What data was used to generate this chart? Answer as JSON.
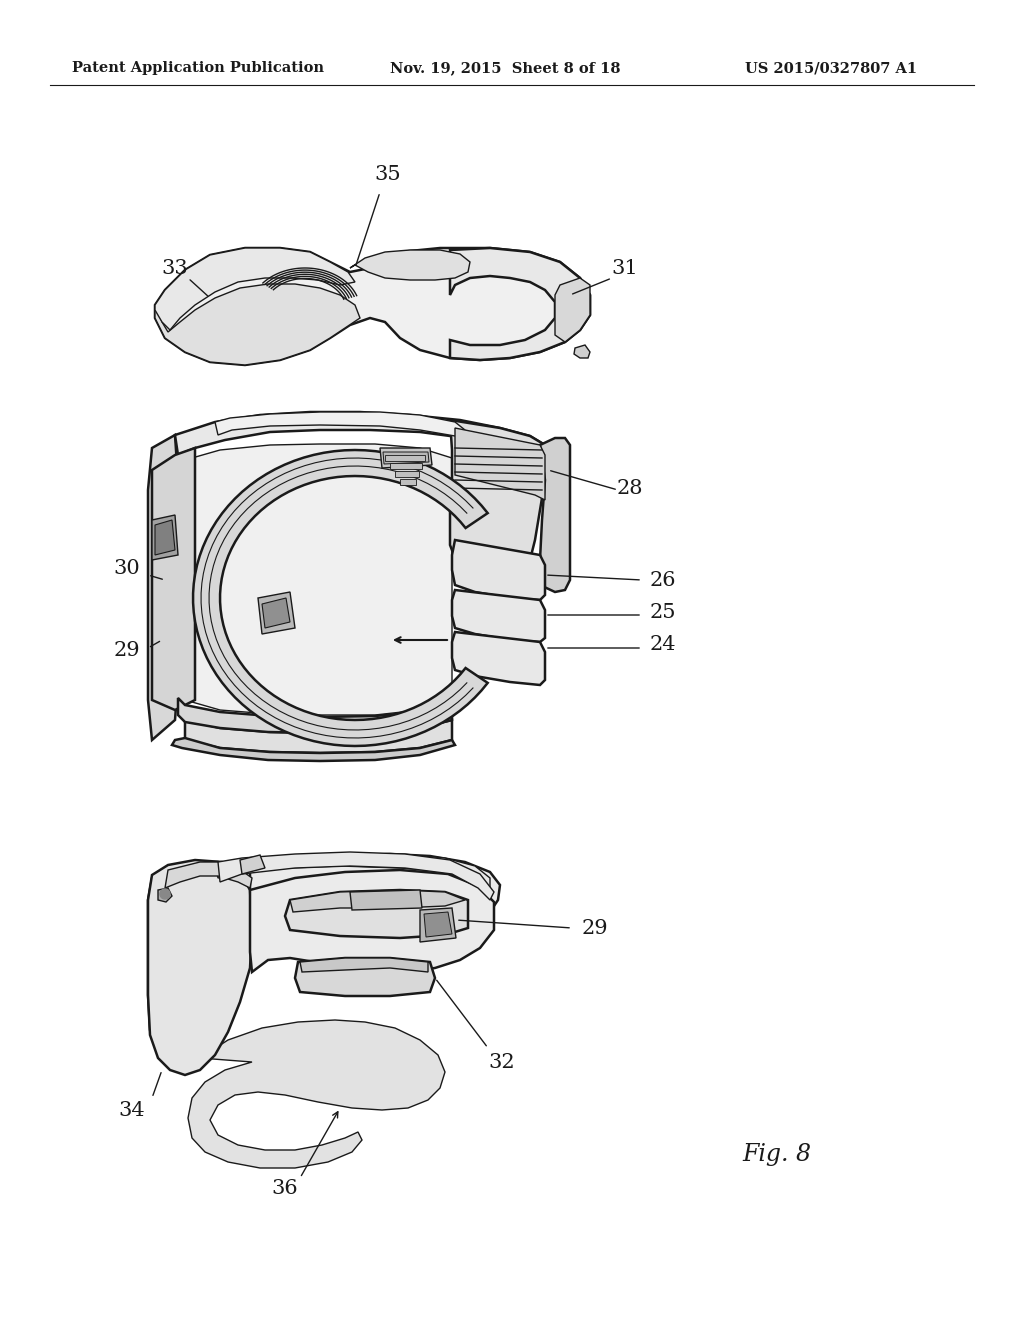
{
  "background_color": "#ffffff",
  "header_left": "Patent Application Publication",
  "header_center": "Nov. 19, 2015  Sheet 8 of 18",
  "header_right": "US 2015/0327807 A1",
  "figure_label": "Fig. 8",
  "line_color": "#1a1a1a",
  "text_color": "#1a1a1a",
  "header_fontsize": 10.5,
  "label_fontsize": 15,
  "fig8_fontsize": 17
}
